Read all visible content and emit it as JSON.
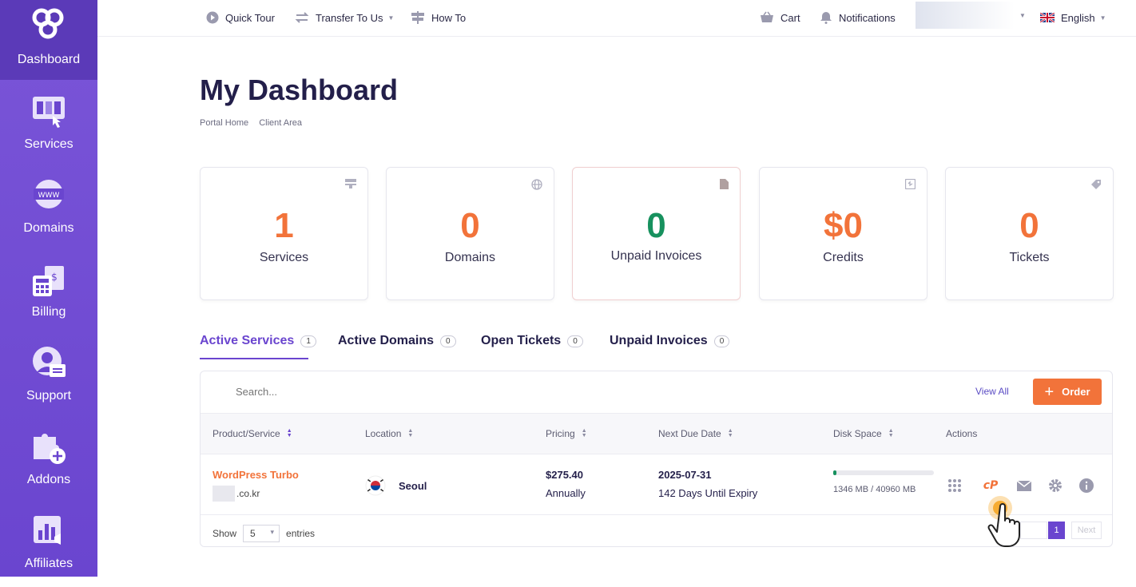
{
  "sidebar": {
    "logo_label": "Dashboard",
    "items": [
      {
        "label": "Services",
        "icon": "services-icon"
      },
      {
        "label": "Domains",
        "icon": "domain-www-icon"
      },
      {
        "label": "Billing",
        "icon": "billing-calculator-icon"
      },
      {
        "label": "Support",
        "icon": "support-agent-icon"
      },
      {
        "label": "Addons",
        "icon": "puzzle-plus-icon"
      },
      {
        "label": "Affiliates",
        "icon": "affiliates-chart-icon"
      }
    ]
  },
  "topbar": {
    "quick_tour": "Quick Tour",
    "transfer": "Transfer To Us",
    "how_to": "How To",
    "cart": "Cart",
    "notifications": "Notifications",
    "language": "English"
  },
  "page": {
    "title": "My Dashboard",
    "breadcrumb": [
      "Portal Home",
      "Client Area"
    ]
  },
  "stats": [
    {
      "value": "1",
      "label": "Services",
      "icon": "server-icon",
      "color": "#f2733a"
    },
    {
      "value": "0",
      "label": "Domains",
      "icon": "globe-icon",
      "color": "#f2733a"
    },
    {
      "value": "0",
      "label": "Unpaid Invoices",
      "icon": "document-icon",
      "color": "#17915e"
    },
    {
      "value": "$0",
      "label": "Credits",
      "icon": "credit-icon",
      "color": "#f2733a"
    },
    {
      "value": "0",
      "label": "Tickets",
      "icon": "tag-icon",
      "color": "#f2733a"
    }
  ],
  "tabs": [
    {
      "label": "Active Services",
      "count": "1",
      "active": true
    },
    {
      "label": "Active Domains",
      "count": "0"
    },
    {
      "label": "Open Tickets",
      "count": "0"
    },
    {
      "label": "Unpaid Invoices",
      "count": "0"
    }
  ],
  "table": {
    "search_placeholder": "Search...",
    "view_all": "View All",
    "order_label": "Order",
    "columns": [
      "Product/Service",
      "Location",
      "Pricing",
      "Next Due Date",
      "Disk Space",
      "Actions"
    ],
    "rows": [
      {
        "product": "WordPress Turbo",
        "domain_suffix": ".co.kr",
        "location": "Seoul",
        "price": "$275.40",
        "cycle": "Annually",
        "due_date": "2025-07-31",
        "expiry": "142 Days Until Expiry",
        "disk_used_fraction": 0.033,
        "disk_text": "1346 MB / 40960 MB"
      }
    ],
    "show_label": "Show",
    "page_size": "5",
    "entries_label": "entries",
    "current_page": "1",
    "next_label": "Next"
  },
  "colors": {
    "accent": "#6a45cf",
    "orange": "#f2733a",
    "green": "#17915e"
  }
}
